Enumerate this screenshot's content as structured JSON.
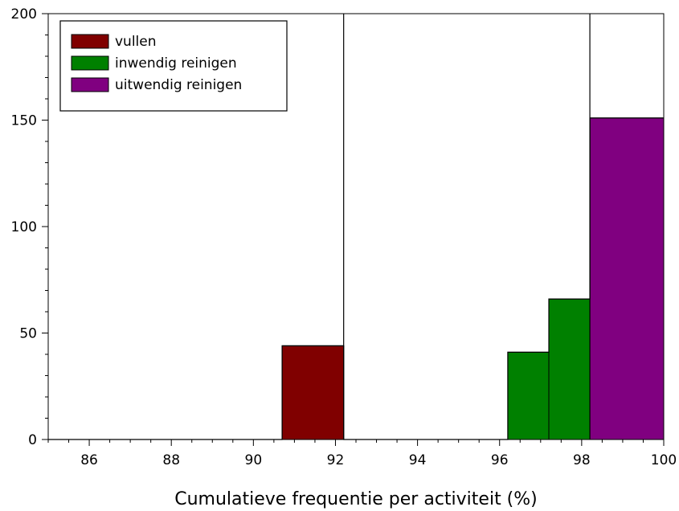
{
  "chart_data": {
    "type": "bar",
    "title": "",
    "xlabel": "Cumulatieve frequentie per activiteit (%)",
    "ylabel": "",
    "xlim": [
      85,
      100
    ],
    "ylim": [
      0,
      200
    ],
    "x_ticks": [
      "86",
      "88",
      "90",
      "92",
      "94",
      "96",
      "98",
      "100"
    ],
    "y_ticks": [
      "0",
      "50",
      "100",
      "150",
      "200"
    ],
    "grid": false,
    "legend_position": "top-left",
    "series": [
      {
        "name": "vullen",
        "color": "#800000",
        "bars": [
          {
            "x_start": 90.7,
            "x_end": 92.2,
            "value": 44
          }
        ]
      },
      {
        "name": "inwendig reinigen",
        "color": "#008000",
        "bars": [
          {
            "x_start": 96.2,
            "x_end": 97.2,
            "value": 41
          },
          {
            "x_start": 97.2,
            "x_end": 98.2,
            "value": 66
          }
        ]
      },
      {
        "name": "uitwendig reinigen",
        "color": "#800080",
        "bars": [
          {
            "x_start": 98.2,
            "x_end": 100,
            "value": 151
          }
        ]
      }
    ],
    "outline_steps": [
      {
        "x_start": 85,
        "x_end": 90.7,
        "value": 0
      },
      {
        "x_start": 90.7,
        "x_end": 92.2,
        "value": 44
      },
      {
        "x_start": 92.2,
        "x_end": 96.2,
        "value": 0
      },
      {
        "x_start": 96.2,
        "x_end": 97.2,
        "value": 41
      },
      {
        "x_start": 97.2,
        "x_end": 98.2,
        "value": 66
      },
      {
        "x_start": 98.2,
        "x_end": 100,
        "value": 151
      }
    ],
    "separators_x": [
      92.2,
      98.2
    ]
  }
}
